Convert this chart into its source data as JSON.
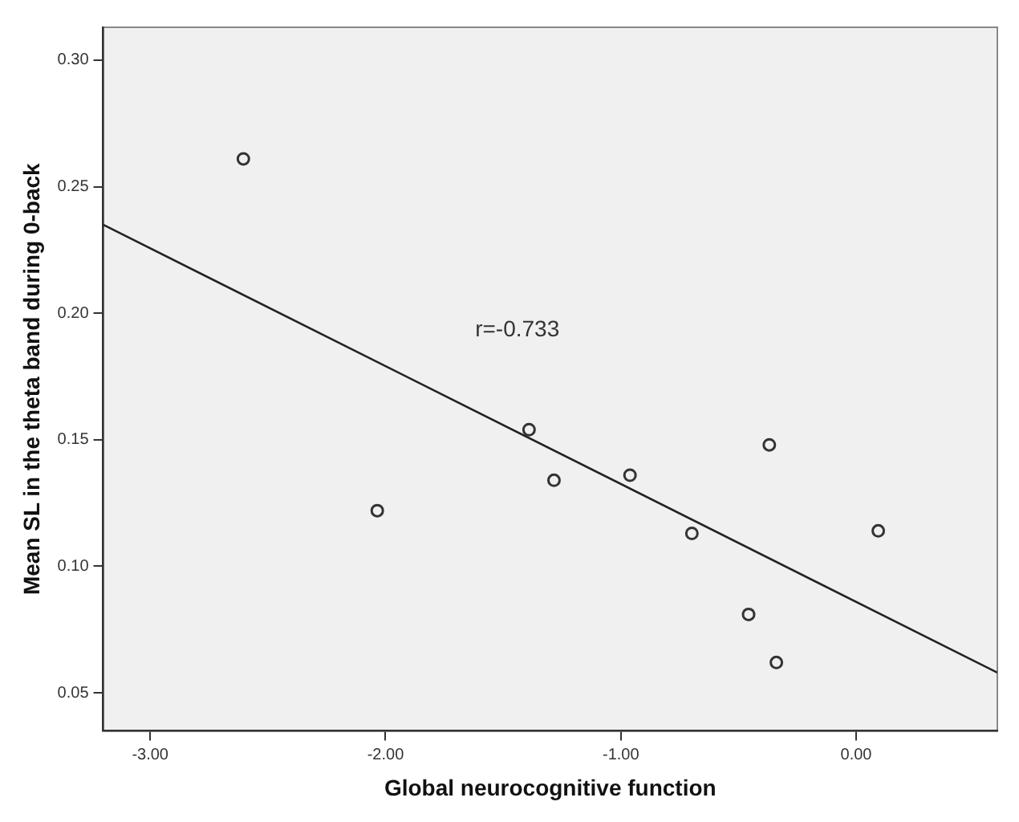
{
  "chart_data": {
    "type": "scatter",
    "xlabel": "Global neurocognitive function",
    "ylabel": "Mean SL in the theta band during 0-back",
    "series": [
      {
        "type": "scatter",
        "color": "#333333",
        "marker": "circle",
        "x": [
          -2.604,
          -2.035,
          -1.39,
          -1.284,
          -0.961,
          -0.698,
          -0.369,
          -0.457,
          -0.339,
          0.094
        ],
        "values": [
          0.261,
          0.122,
          0.154,
          0.134,
          0.136,
          0.113,
          0.148,
          0.081,
          0.062,
          0.114
        ]
      },
      {
        "type": "line",
        "color": "#222222",
        "marker": "none",
        "x": [
          -3.2,
          0.6
        ],
        "values": [
          0.235,
          0.058
        ]
      }
    ],
    "annotations": [
      "r=-0.733"
    ],
    "xlim": [
      -3.2,
      0.6
    ],
    "ylim": [
      0.035,
      0.313
    ],
    "xticks": [
      {
        "value": -3,
        "label": "-3.00"
      },
      {
        "value": -2,
        "label": "-2.00"
      },
      {
        "value": -1,
        "label": "-1.00"
      },
      {
        "value": 0,
        "label": "0.00"
      }
    ],
    "yticks": [
      {
        "value": 0.05,
        "label": "0.05"
      },
      {
        "value": 0.1,
        "label": "0.10"
      },
      {
        "value": 0.15,
        "label": "0.15"
      },
      {
        "value": 0.2,
        "label": "0.20"
      },
      {
        "value": 0.25,
        "label": "0.25"
      },
      {
        "value": 0.3,
        "label": "0.30"
      }
    ],
    "grid": false,
    "legend": false
  }
}
